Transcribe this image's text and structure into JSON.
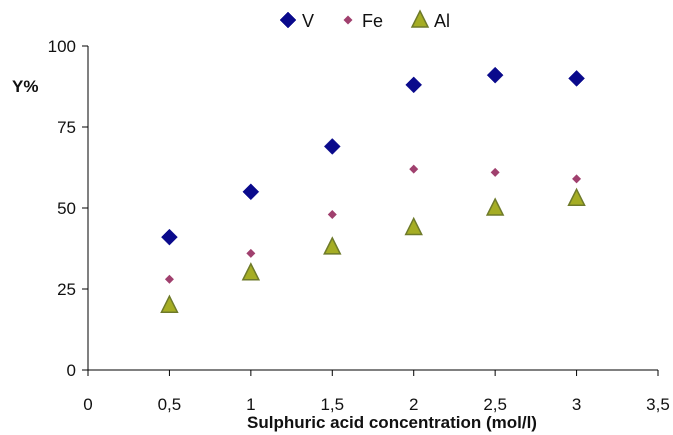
{
  "chart_data": {
    "type": "scatter",
    "title": "",
    "xlabel": "Sulphuric acid concentration (mol/l)",
    "ylabel": "Y%",
    "xlim": [
      0,
      3.5
    ],
    "ylim": [
      0,
      100
    ],
    "x_ticks": [
      "0",
      "0,5",
      "1",
      "1,5",
      "2",
      "2,5",
      "3",
      "3,5"
    ],
    "y_ticks": [
      "0",
      "25",
      "50",
      "75",
      "100"
    ],
    "grid": false,
    "legend_position": "top",
    "series": [
      {
        "name": "V",
        "marker": "diamond",
        "color": "#0a0a8c",
        "x": [
          0.5,
          1,
          1.5,
          2,
          2.5,
          3
        ],
        "y": [
          41,
          55,
          69,
          88,
          91,
          90
        ]
      },
      {
        "name": "Fe",
        "marker": "small-diamond",
        "color": "#a0406e",
        "x": [
          0.5,
          1,
          1.5,
          2,
          2.5,
          3
        ],
        "y": [
          28,
          36,
          48,
          62,
          61,
          59
        ]
      },
      {
        "name": "Al",
        "marker": "triangle",
        "color": "#a5ad24",
        "x": [
          0.5,
          1,
          1.5,
          2,
          2.5,
          3
        ],
        "y": [
          20,
          30,
          38,
          44,
          50,
          53
        ]
      }
    ]
  }
}
